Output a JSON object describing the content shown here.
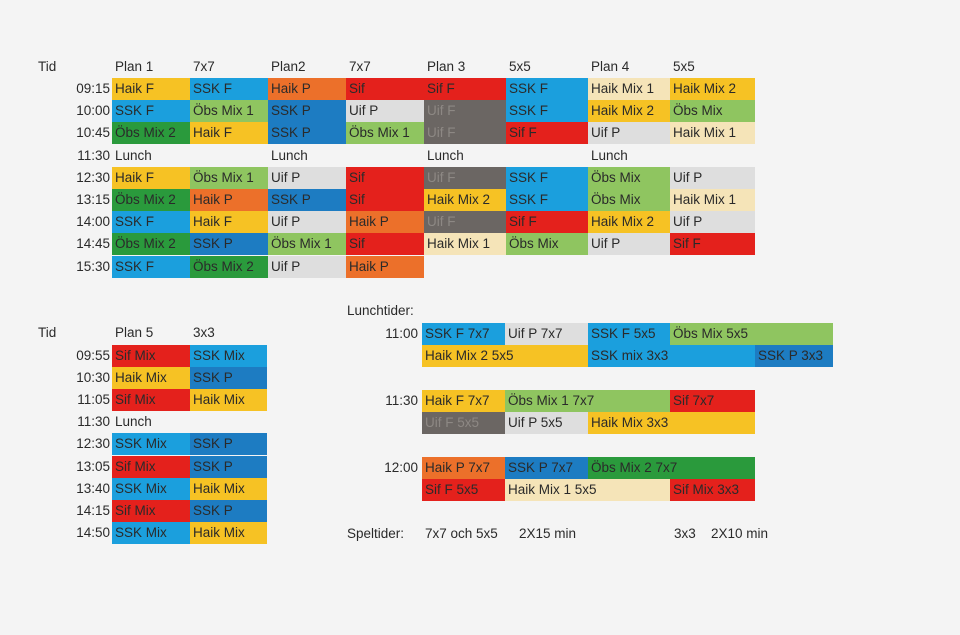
{
  "colors": {
    "yellow": "#f6c224",
    "blue": "#1b9fdd",
    "darkblue": "#1d7cc2",
    "orange": "#ec702a",
    "red": "#e4211c",
    "gray": "#dedede",
    "lightgreen": "#8fc560",
    "green": "#2a9a3c",
    "darkgray": "#6b6663",
    "beige": "#f5e4b8"
  },
  "top_table": {
    "tid_label": "Tid",
    "headers": [
      "Plan 1",
      "7x7",
      "Plan2",
      "7x7",
      "Plan 3",
      "5x5",
      "Plan 4",
      "5x5"
    ],
    "rows": [
      {
        "time": "09:15",
        "cells": [
          [
            "Haik F",
            "yellow"
          ],
          [
            "SSK F",
            "blue"
          ],
          [
            "Haik P",
            "orange"
          ],
          [
            "Sif",
            "red"
          ],
          [
            "Sif F",
            "red"
          ],
          [
            "SSK F",
            "blue"
          ],
          [
            "Haik Mix 1",
            "beige"
          ],
          [
            "Haik Mix 2",
            "yellow"
          ]
        ]
      },
      {
        "time": "10:00",
        "cells": [
          [
            "SSK F",
            "blue"
          ],
          [
            "Öbs Mix 1",
            "lightgreen"
          ],
          [
            "SSK P",
            "darkblue"
          ],
          [
            "Uif P",
            "gray"
          ],
          [
            "Uif F",
            "darkgray"
          ],
          [
            "SSK F",
            "blue"
          ],
          [
            "Haik Mix 2",
            "yellow"
          ],
          [
            "Öbs Mix",
            "lightgreen"
          ]
        ]
      },
      {
        "time": "10:45",
        "cells": [
          [
            "Öbs Mix 2",
            "green"
          ],
          [
            "Haik F",
            "yellow"
          ],
          [
            "SSK P",
            "darkblue"
          ],
          [
            "Öbs Mix 1",
            "lightgreen"
          ],
          [
            "Uif F",
            "darkgray"
          ],
          [
            "Sif F",
            "red"
          ],
          [
            "Uif P",
            "gray"
          ],
          [
            "Haik Mix 1",
            "beige"
          ]
        ]
      },
      {
        "time": "11:30",
        "lunch": "Lunch"
      },
      {
        "time": "12:30",
        "cells": [
          [
            "Haik F",
            "yellow"
          ],
          [
            "Öbs Mix 1",
            "lightgreen"
          ],
          [
            "Uif P",
            "gray"
          ],
          [
            "Sif",
            "red"
          ],
          [
            "Uif F",
            "darkgray"
          ],
          [
            "SSK F",
            "blue"
          ],
          [
            "Öbs Mix",
            "lightgreen"
          ],
          [
            "Uif P",
            "gray"
          ]
        ]
      },
      {
        "time": "13:15",
        "cells": [
          [
            "Öbs Mix 2",
            "green"
          ],
          [
            "Haik P",
            "orange"
          ],
          [
            "SSK P",
            "darkblue"
          ],
          [
            "Sif",
            "red"
          ],
          [
            "Haik Mix 2",
            "yellow"
          ],
          [
            "SSK F",
            "blue"
          ],
          [
            "Öbs Mix",
            "lightgreen"
          ],
          [
            "Haik Mix 1",
            "beige"
          ]
        ]
      },
      {
        "time": "14:00",
        "cells": [
          [
            "SSK F",
            "blue"
          ],
          [
            "Haik F",
            "yellow"
          ],
          [
            "Uif P",
            "gray"
          ],
          [
            "Haik P",
            "orange"
          ],
          [
            "Uif F",
            "darkgray"
          ],
          [
            "Sif F",
            "red"
          ],
          [
            "Haik Mix 2",
            "yellow"
          ],
          [
            "Uif P",
            "gray"
          ]
        ]
      },
      {
        "time": "14:45",
        "cells": [
          [
            "Öbs Mix 2",
            "green"
          ],
          [
            "SSK P",
            "darkblue"
          ],
          [
            "Öbs Mix 1",
            "lightgreen"
          ],
          [
            "Sif",
            "red"
          ],
          [
            "Haik Mix 1",
            "beige"
          ],
          [
            "Öbs Mix",
            "lightgreen"
          ],
          [
            "Uif P",
            "gray"
          ],
          [
            "Sif F",
            "red"
          ]
        ]
      },
      {
        "time": "15:30",
        "cells": [
          [
            "SSK F",
            "blue"
          ],
          [
            "Öbs Mix 2",
            "green"
          ],
          [
            "Uif P",
            "gray"
          ],
          [
            "Haik P",
            "orange"
          ]
        ]
      }
    ]
  },
  "bottom_table": {
    "tid_label": "Tid",
    "headers": [
      "Plan 5",
      "3x3"
    ],
    "rows": [
      {
        "time": "09:55",
        "cells": [
          [
            "Sif Mix",
            "red"
          ],
          [
            "SSK Mix",
            "blue"
          ]
        ]
      },
      {
        "time": "10:30",
        "cells": [
          [
            "Haik Mix",
            "yellow"
          ],
          [
            "SSK P",
            "darkblue"
          ]
        ]
      },
      {
        "time": "11:05",
        "cells": [
          [
            "Sif Mix",
            "red"
          ],
          [
            "Haik Mix",
            "yellow"
          ]
        ]
      },
      {
        "time": "11:30",
        "lunch": "Lunch"
      },
      {
        "time": "12:30",
        "cells": [
          [
            "SSK Mix",
            "blue"
          ],
          [
            "SSK P",
            "darkblue"
          ]
        ]
      },
      {
        "time": "13:05",
        "cells": [
          [
            "Sif Mix",
            "red"
          ],
          [
            "SSK P",
            "darkblue"
          ]
        ]
      },
      {
        "time": "13:40",
        "cells": [
          [
            "SSK Mix",
            "blue"
          ],
          [
            "Haik Mix",
            "yellow"
          ]
        ]
      },
      {
        "time": "14:15",
        "cells": [
          [
            "Sif Mix",
            "red"
          ],
          [
            "SSK P",
            "darkblue"
          ]
        ]
      },
      {
        "time": "14:50",
        "cells": [
          [
            "SSK Mix",
            "blue"
          ],
          [
            "Haik Mix",
            "yellow"
          ]
        ]
      }
    ]
  },
  "lunch_times": {
    "title": "Lunchtider:",
    "groups": [
      {
        "time": "11:00",
        "lines": [
          [
            [
              "SSK F 7x7",
              "blue"
            ],
            [
              "Uif P 7x7",
              "gray"
            ],
            [
              "SSK F 5x5",
              "blue"
            ],
            [
              "Öbs Mix 5x5",
              "lightgreen"
            ]
          ],
          [
            [
              "Haik Mix 2 5x5",
              "yellow"
            ],
            [
              "SSK mix 3x3",
              "blue"
            ],
            [
              "SSK P 3x3",
              "darkblue"
            ]
          ]
        ]
      },
      {
        "time": "11:30",
        "lines": [
          [
            [
              "Haik F 7x7",
              "yellow"
            ],
            [
              "Öbs Mix 1 7x7",
              "lightgreen"
            ],
            [
              "Sif 7x7",
              "red"
            ]
          ],
          [
            [
              "Uif F 5x5",
              "darkgray"
            ],
            [
              "Uif P 5x5",
              "gray"
            ],
            [
              "Haik Mix 3x3",
              "yellow"
            ]
          ]
        ]
      },
      {
        "time": "12:00",
        "lines": [
          [
            [
              "Haik P 7x7",
              "orange"
            ],
            [
              "SSK P 7x7",
              "darkblue"
            ],
            [
              "Öbs Mix 2 7x7",
              "green"
            ]
          ],
          [
            [
              "Sif F 5x5",
              "red"
            ],
            [
              "Haik Mix 1 5x5",
              "beige"
            ],
            [
              "Sif Mix 3x3",
              "red"
            ]
          ]
        ]
      }
    ]
  },
  "play_times": {
    "label": "Speltider:",
    "a_format": "7x7 och 5x5",
    "a_duration": "2X15 min",
    "b_format": "3x3",
    "b_duration": "2X10 min"
  }
}
